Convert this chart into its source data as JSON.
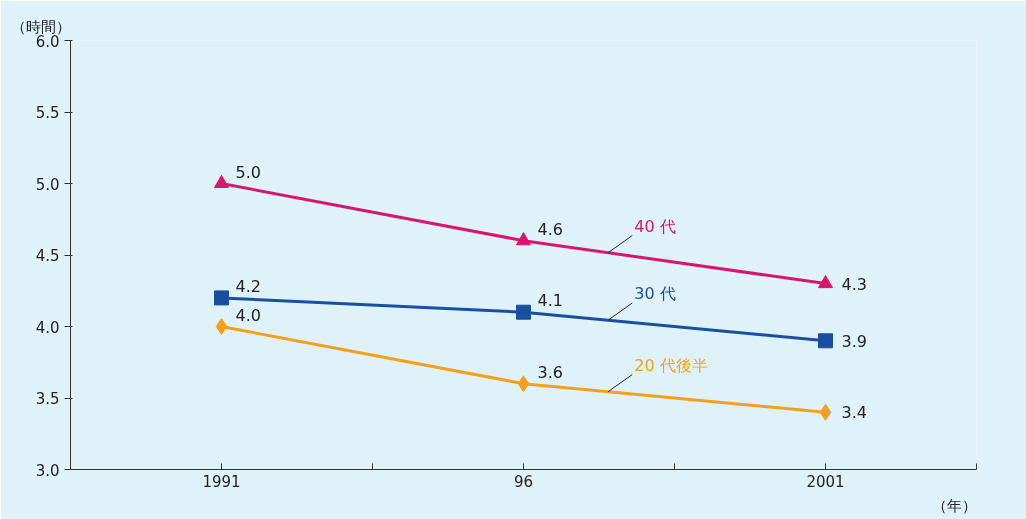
{
  "chart_data": {
    "type": "line",
    "ylabel": "（時間）",
    "xlabel": "（年）",
    "categories": [
      "1991",
      "96",
      "2001"
    ],
    "series": [
      {
        "name": "40 代",
        "color": "#d6186c",
        "marker": "triangle",
        "values": [
          5.0,
          4.6,
          4.3
        ],
        "value_labels": [
          "5.0",
          "4.6",
          "4.3"
        ]
      },
      {
        "name": "30 代",
        "color": "#1a4f9f",
        "marker": "square",
        "values": [
          4.2,
          4.1,
          3.9
        ],
        "value_labels": [
          "4.2",
          "4.1",
          "3.9"
        ]
      },
      {
        "name": "20 代後半",
        "color": "#f4a01e",
        "marker": "diamond",
        "values": [
          4.0,
          3.6,
          3.4
        ],
        "value_labels": [
          "4.0",
          "3.6",
          "3.4"
        ]
      }
    ],
    "ylim": [
      3,
      6
    ],
    "yticks": [
      {
        "value": 3,
        "label": "3.0"
      },
      {
        "value": 3.5,
        "label": "3.5"
      },
      {
        "value": 4,
        "label": "4.0"
      },
      {
        "value": 4.5,
        "label": "4.5"
      },
      {
        "value": 5,
        "label": "5.0"
      },
      {
        "value": 5.5,
        "label": "5.5"
      },
      {
        "value": 6,
        "label": "6.0"
      }
    ],
    "grid": false,
    "legend": false,
    "line_style": "solid"
  }
}
